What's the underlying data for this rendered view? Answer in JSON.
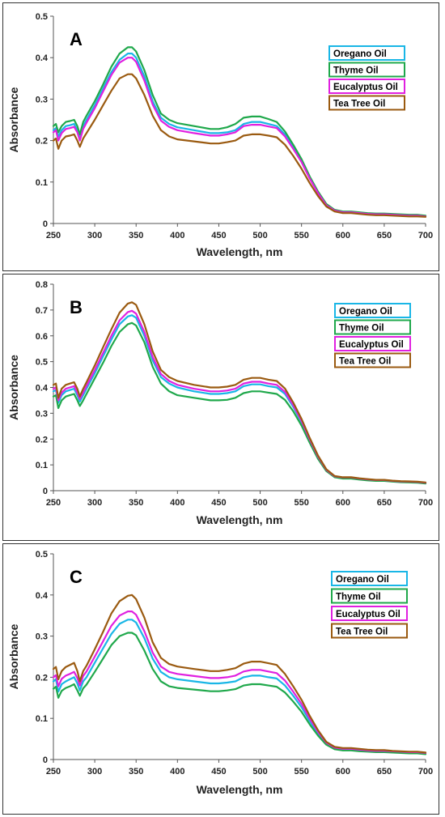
{
  "chart_data": [
    {
      "type": "line",
      "panel_label": "A",
      "xlabel": "Wavelength, nm",
      "ylabel": "Absorbance",
      "xlim": [
        250,
        700
      ],
      "ylim": [
        0,
        0.5
      ],
      "xticks": [
        250,
        300,
        350,
        400,
        450,
        500,
        550,
        600,
        650,
        700
      ],
      "yticks": [
        0,
        0.1,
        0.2,
        0.3,
        0.4,
        0.5
      ],
      "ytick_labels": [
        "0",
        "0.1",
        "0.2",
        "0.3",
        "0.4",
        "0.5"
      ],
      "x": [
        250,
        253,
        256,
        260,
        265,
        270,
        275,
        279,
        282,
        286,
        290,
        300,
        310,
        320,
        330,
        340,
        345,
        350,
        360,
        370,
        380,
        390,
        400,
        420,
        440,
        450,
        460,
        470,
        480,
        490,
        500,
        510,
        520,
        530,
        540,
        550,
        560,
        570,
        580,
        590,
        600,
        610,
        620,
        630,
        640,
        650,
        660,
        670,
        680,
        690,
        700
      ],
      "series": [
        {
          "name": "Oregano Oil",
          "color": "#19b6e6",
          "values": [
            0.225,
            0.23,
            0.21,
            0.225,
            0.235,
            0.237,
            0.24,
            0.225,
            0.205,
            0.235,
            0.25,
            0.285,
            0.325,
            0.365,
            0.395,
            0.41,
            0.41,
            0.4,
            0.355,
            0.295,
            0.255,
            0.24,
            0.232,
            0.225,
            0.218,
            0.218,
            0.22,
            0.225,
            0.24,
            0.245,
            0.245,
            0.24,
            0.235,
            0.215,
            0.185,
            0.15,
            0.11,
            0.075,
            0.045,
            0.032,
            0.028,
            0.028,
            0.026,
            0.024,
            0.023,
            0.023,
            0.022,
            0.021,
            0.02,
            0.02,
            0.018
          ]
        },
        {
          "name": "Thyme Oil",
          "color": "#1fa84b",
          "values": [
            0.235,
            0.24,
            0.22,
            0.235,
            0.245,
            0.247,
            0.25,
            0.235,
            0.215,
            0.245,
            0.26,
            0.295,
            0.335,
            0.378,
            0.41,
            0.425,
            0.425,
            0.415,
            0.37,
            0.31,
            0.265,
            0.25,
            0.242,
            0.235,
            0.228,
            0.228,
            0.232,
            0.24,
            0.255,
            0.258,
            0.258,
            0.252,
            0.245,
            0.222,
            0.19,
            0.155,
            0.113,
            0.077,
            0.047,
            0.033,
            0.029,
            0.029,
            0.027,
            0.025,
            0.024,
            0.024,
            0.023,
            0.022,
            0.021,
            0.021,
            0.019
          ]
        },
        {
          "name": "Eucalyptus Oil",
          "color": "#e020e0",
          "values": [
            0.22,
            0.225,
            0.2,
            0.218,
            0.228,
            0.23,
            0.233,
            0.22,
            0.2,
            0.228,
            0.243,
            0.278,
            0.318,
            0.358,
            0.388,
            0.4,
            0.4,
            0.39,
            0.345,
            0.287,
            0.248,
            0.233,
            0.225,
            0.218,
            0.212,
            0.212,
            0.215,
            0.22,
            0.235,
            0.238,
            0.238,
            0.234,
            0.23,
            0.21,
            0.18,
            0.148,
            0.108,
            0.073,
            0.044,
            0.031,
            0.027,
            0.027,
            0.025,
            0.023,
            0.022,
            0.022,
            0.021,
            0.02,
            0.019,
            0.019,
            0.017
          ]
        },
        {
          "name": "Tea Tree Oil",
          "color": "#9a5a10",
          "values": [
            0.2,
            0.205,
            0.18,
            0.2,
            0.21,
            0.212,
            0.215,
            0.2,
            0.185,
            0.205,
            0.218,
            0.25,
            0.285,
            0.32,
            0.35,
            0.36,
            0.36,
            0.35,
            0.31,
            0.26,
            0.225,
            0.21,
            0.203,
            0.198,
            0.193,
            0.193,
            0.196,
            0.2,
            0.212,
            0.215,
            0.215,
            0.212,
            0.208,
            0.19,
            0.163,
            0.132,
            0.097,
            0.066,
            0.041,
            0.029,
            0.025,
            0.025,
            0.023,
            0.021,
            0.02,
            0.02,
            0.019,
            0.018,
            0.017,
            0.017,
            0.016
          ]
        }
      ],
      "legend": "right-top"
    },
    {
      "type": "line",
      "panel_label": "B",
      "xlabel": "Wavelength, nm",
      "ylabel": "Absorbance",
      "xlim": [
        250,
        700
      ],
      "ylim": [
        0,
        0.8
      ],
      "xticks": [
        250,
        300,
        350,
        400,
        450,
        500,
        550,
        600,
        650,
        700
      ],
      "yticks": [
        0,
        0.1,
        0.2,
        0.3,
        0.4,
        0.5,
        0.6,
        0.7,
        0.8
      ],
      "ytick_labels": [
        "0",
        "0.1",
        "0.2",
        "0.3",
        "0.4",
        "0.5",
        "0.6",
        "0.7",
        "0.8"
      ],
      "x": [
        250,
        253,
        256,
        260,
        265,
        270,
        275,
        279,
        282,
        286,
        290,
        300,
        310,
        320,
        330,
        340,
        345,
        350,
        360,
        370,
        380,
        390,
        400,
        420,
        440,
        450,
        460,
        470,
        480,
        490,
        500,
        510,
        520,
        530,
        540,
        550,
        560,
        570,
        580,
        590,
        600,
        610,
        620,
        630,
        640,
        650,
        660,
        670,
        680,
        690,
        700
      ],
      "series": [
        {
          "name": "Oregano Oil",
          "color": "#19b6e6",
          "values": [
            0.385,
            0.39,
            0.34,
            0.37,
            0.385,
            0.39,
            0.395,
            0.37,
            0.345,
            0.37,
            0.395,
            0.455,
            0.52,
            0.585,
            0.645,
            0.675,
            0.68,
            0.67,
            0.6,
            0.505,
            0.44,
            0.415,
            0.4,
            0.385,
            0.375,
            0.375,
            0.378,
            0.385,
            0.405,
            0.412,
            0.412,
            0.405,
            0.4,
            0.375,
            0.325,
            0.265,
            0.195,
            0.13,
            0.08,
            0.055,
            0.05,
            0.05,
            0.046,
            0.043,
            0.04,
            0.04,
            0.037,
            0.035,
            0.034,
            0.033,
            0.03
          ]
        },
        {
          "name": "Thyme Oil",
          "color": "#1fa84b",
          "values": [
            0.365,
            0.37,
            0.32,
            0.35,
            0.365,
            0.37,
            0.375,
            0.35,
            0.328,
            0.35,
            0.375,
            0.435,
            0.495,
            0.56,
            0.615,
            0.645,
            0.65,
            0.64,
            0.575,
            0.48,
            0.415,
            0.385,
            0.37,
            0.36,
            0.35,
            0.35,
            0.352,
            0.36,
            0.378,
            0.385,
            0.385,
            0.38,
            0.375,
            0.352,
            0.308,
            0.252,
            0.185,
            0.123,
            0.076,
            0.052,
            0.047,
            0.047,
            0.043,
            0.04,
            0.038,
            0.038,
            0.035,
            0.033,
            0.032,
            0.031,
            0.028
          ]
        },
        {
          "name": "Eucalyptus Oil",
          "color": "#e020e0",
          "values": [
            0.395,
            0.4,
            0.35,
            0.38,
            0.395,
            0.4,
            0.405,
            0.38,
            0.355,
            0.38,
            0.405,
            0.467,
            0.533,
            0.6,
            0.66,
            0.692,
            0.697,
            0.686,
            0.615,
            0.518,
            0.452,
            0.425,
            0.41,
            0.395,
            0.385,
            0.385,
            0.388,
            0.395,
            0.415,
            0.422,
            0.422,
            0.415,
            0.41,
            0.383,
            0.332,
            0.27,
            0.198,
            0.132,
            0.081,
            0.056,
            0.051,
            0.051,
            0.047,
            0.044,
            0.041,
            0.041,
            0.038,
            0.036,
            0.035,
            0.034,
            0.031
          ]
        },
        {
          "name": "Tea Tree Oil",
          "color": "#9a5a10",
          "values": [
            0.41,
            0.415,
            0.36,
            0.395,
            0.41,
            0.415,
            0.42,
            0.395,
            0.365,
            0.395,
            0.42,
            0.485,
            0.555,
            0.625,
            0.69,
            0.725,
            0.73,
            0.72,
            0.645,
            0.54,
            0.468,
            0.44,
            0.425,
            0.41,
            0.4,
            0.4,
            0.403,
            0.41,
            0.43,
            0.437,
            0.437,
            0.43,
            0.425,
            0.396,
            0.342,
            0.278,
            0.204,
            0.136,
            0.083,
            0.057,
            0.052,
            0.052,
            0.048,
            0.045,
            0.042,
            0.042,
            0.039,
            0.037,
            0.036,
            0.035,
            0.032
          ]
        }
      ],
      "legend": "right-top"
    },
    {
      "type": "line",
      "panel_label": "C",
      "xlabel": "Wavelength, nm",
      "ylabel": "Absorbance",
      "xlim": [
        250,
        700
      ],
      "ylim": [
        0,
        0.5
      ],
      "xticks": [
        250,
        300,
        350,
        400,
        450,
        500,
        550,
        600,
        650,
        700
      ],
      "yticks": [
        0,
        0.1,
        0.2,
        0.3,
        0.4,
        0.5
      ],
      "ytick_labels": [
        "0",
        "0.1",
        "0.2",
        "0.3",
        "0.4",
        "0.5"
      ],
      "x": [
        250,
        253,
        256,
        260,
        265,
        270,
        275,
        279,
        282,
        286,
        290,
        300,
        310,
        320,
        330,
        340,
        345,
        350,
        360,
        370,
        380,
        390,
        400,
        420,
        440,
        450,
        460,
        470,
        480,
        490,
        500,
        510,
        520,
        530,
        540,
        550,
        560,
        570,
        580,
        590,
        600,
        610,
        620,
        630,
        640,
        650,
        660,
        670,
        680,
        690,
        700
      ],
      "series": [
        {
          "name": "Oregano Oil",
          "color": "#19b6e6",
          "values": [
            0.19,
            0.195,
            0.165,
            0.183,
            0.19,
            0.195,
            0.2,
            0.185,
            0.168,
            0.19,
            0.2,
            0.235,
            0.27,
            0.305,
            0.33,
            0.34,
            0.34,
            0.333,
            0.295,
            0.245,
            0.213,
            0.2,
            0.195,
            0.19,
            0.185,
            0.185,
            0.187,
            0.19,
            0.2,
            0.204,
            0.204,
            0.2,
            0.197,
            0.18,
            0.155,
            0.127,
            0.093,
            0.063,
            0.039,
            0.027,
            0.024,
            0.024,
            0.022,
            0.021,
            0.02,
            0.02,
            0.019,
            0.018,
            0.017,
            0.017,
            0.015
          ]
        },
        {
          "name": "Thyme Oil",
          "color": "#1fa84b",
          "values": [
            0.172,
            0.177,
            0.15,
            0.167,
            0.174,
            0.178,
            0.183,
            0.168,
            0.155,
            0.173,
            0.182,
            0.213,
            0.245,
            0.278,
            0.3,
            0.308,
            0.308,
            0.302,
            0.265,
            0.22,
            0.19,
            0.178,
            0.174,
            0.17,
            0.166,
            0.166,
            0.168,
            0.171,
            0.18,
            0.183,
            0.183,
            0.18,
            0.177,
            0.163,
            0.141,
            0.116,
            0.085,
            0.058,
            0.036,
            0.025,
            0.022,
            0.022,
            0.02,
            0.019,
            0.018,
            0.018,
            0.017,
            0.016,
            0.015,
            0.015,
            0.013
          ]
        },
        {
          "name": "Eucalyptus Oil",
          "color": "#e020e0",
          "values": [
            0.2,
            0.205,
            0.178,
            0.196,
            0.204,
            0.208,
            0.213,
            0.198,
            0.18,
            0.203,
            0.214,
            0.25,
            0.287,
            0.325,
            0.35,
            0.36,
            0.36,
            0.352,
            0.312,
            0.26,
            0.226,
            0.213,
            0.208,
            0.203,
            0.198,
            0.198,
            0.2,
            0.204,
            0.214,
            0.218,
            0.218,
            0.214,
            0.21,
            0.192,
            0.165,
            0.135,
            0.099,
            0.067,
            0.041,
            0.029,
            0.026,
            0.026,
            0.024,
            0.022,
            0.021,
            0.021,
            0.02,
            0.019,
            0.018,
            0.018,
            0.016
          ]
        },
        {
          "name": "Tea Tree Oil",
          "color": "#9a5a10",
          "values": [
            0.22,
            0.225,
            0.195,
            0.215,
            0.225,
            0.23,
            0.235,
            0.215,
            0.19,
            0.215,
            0.228,
            0.268,
            0.31,
            0.355,
            0.385,
            0.398,
            0.4,
            0.39,
            0.345,
            0.285,
            0.247,
            0.232,
            0.226,
            0.22,
            0.215,
            0.215,
            0.218,
            0.222,
            0.233,
            0.238,
            0.238,
            0.234,
            0.23,
            0.208,
            0.178,
            0.145,
            0.106,
            0.071,
            0.043,
            0.031,
            0.028,
            0.028,
            0.026,
            0.024,
            0.023,
            0.023,
            0.021,
            0.02,
            0.019,
            0.019,
            0.017
          ]
        }
      ],
      "legend": "right-top"
    }
  ]
}
